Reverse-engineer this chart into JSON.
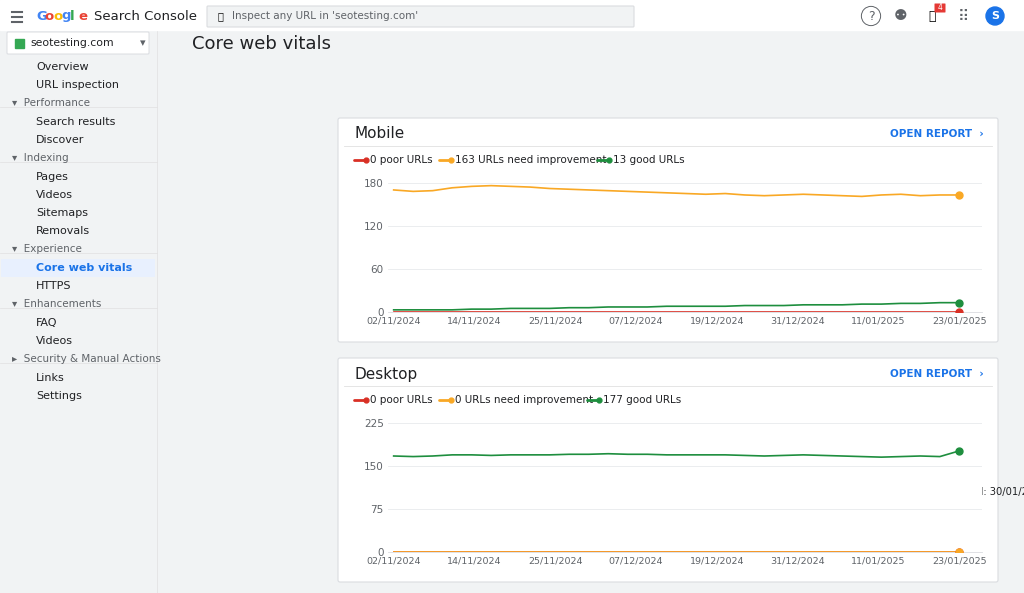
{
  "bg_color": "#f1f3f4",
  "sidebar_color": "#f1f3f4",
  "content_bg": "#ffffff",
  "title": "Core web vitals",
  "x_dates": [
    "02/11/2024",
    "14/11/2024",
    "25/11/2024",
    "07/12/2024",
    "19/12/2024",
    "31/12/2024",
    "11/01/2025",
    "23/01/2025"
  ],
  "mobile": {
    "title": "Mobile",
    "legend": [
      "0 poor URLs",
      "163 URLs need improvement",
      "13 good URLs"
    ],
    "colors": [
      "#d93025",
      "#f9a825",
      "#1e8e3e"
    ],
    "yticks": [
      0,
      60,
      120,
      180
    ],
    "ylim": [
      0,
      195
    ],
    "poor": [
      0,
      0,
      0,
      0,
      0,
      0,
      0,
      0,
      0,
      0,
      0,
      0,
      0,
      0,
      0,
      0,
      0,
      0,
      0,
      0,
      0,
      0,
      0,
      0,
      0,
      0,
      0,
      0,
      0,
      0
    ],
    "need": [
      170,
      168,
      169,
      173,
      175,
      176,
      175,
      174,
      172,
      171,
      170,
      169,
      168,
      167,
      166,
      165,
      164,
      165,
      163,
      162,
      163,
      164,
      163,
      162,
      161,
      163,
      164,
      162,
      163,
      163
    ],
    "good": [
      3,
      3,
      3,
      3,
      4,
      4,
      5,
      5,
      5,
      6,
      6,
      7,
      7,
      7,
      8,
      8,
      8,
      8,
      9,
      9,
      9,
      10,
      10,
      10,
      11,
      11,
      12,
      12,
      13,
      13
    ]
  },
  "desktop": {
    "title": "Desktop",
    "legend": [
      "0 poor URLs",
      "0 URLs need improvement",
      "177 good URLs"
    ],
    "colors": [
      "#d93025",
      "#f9a825",
      "#1e8e3e"
    ],
    "yticks": [
      0,
      75,
      150,
      225
    ],
    "ylim": [
      0,
      245
    ],
    "poor": [
      0,
      0,
      0,
      0,
      0,
      0,
      0,
      0,
      0,
      0,
      0,
      0,
      0,
      0,
      0,
      0,
      0,
      0,
      0,
      0,
      0,
      0,
      0,
      0,
      0,
      0,
      0,
      0,
      0,
      0
    ],
    "need": [
      0,
      0,
      0,
      0,
      0,
      0,
      0,
      0,
      0,
      0,
      0,
      0,
      0,
      0,
      0,
      0,
      0,
      0,
      0,
      0,
      0,
      0,
      0,
      0,
      0,
      0,
      0,
      0,
      0,
      0
    ],
    "good": [
      168,
      167,
      168,
      170,
      170,
      169,
      170,
      170,
      170,
      171,
      171,
      172,
      171,
      171,
      170,
      170,
      170,
      170,
      169,
      168,
      169,
      170,
      169,
      168,
      167,
      166,
      167,
      168,
      167,
      177
    ]
  },
  "open_report_color": "#1a73e8",
  "card_border_color": "#dadce0",
  "text_dark": "#202124",
  "text_gray": "#5f6368",
  "active_bg": "#e8f0fe",
  "active_color": "#1a73e8",
  "google_colors": [
    "#4285f4",
    "#ea4335",
    "#fbbc05",
    "#4285f4",
    "#34a853",
    "#ea4335"
  ],
  "google_letters": [
    "G",
    "o",
    "o",
    "g",
    "l",
    "e"
  ]
}
